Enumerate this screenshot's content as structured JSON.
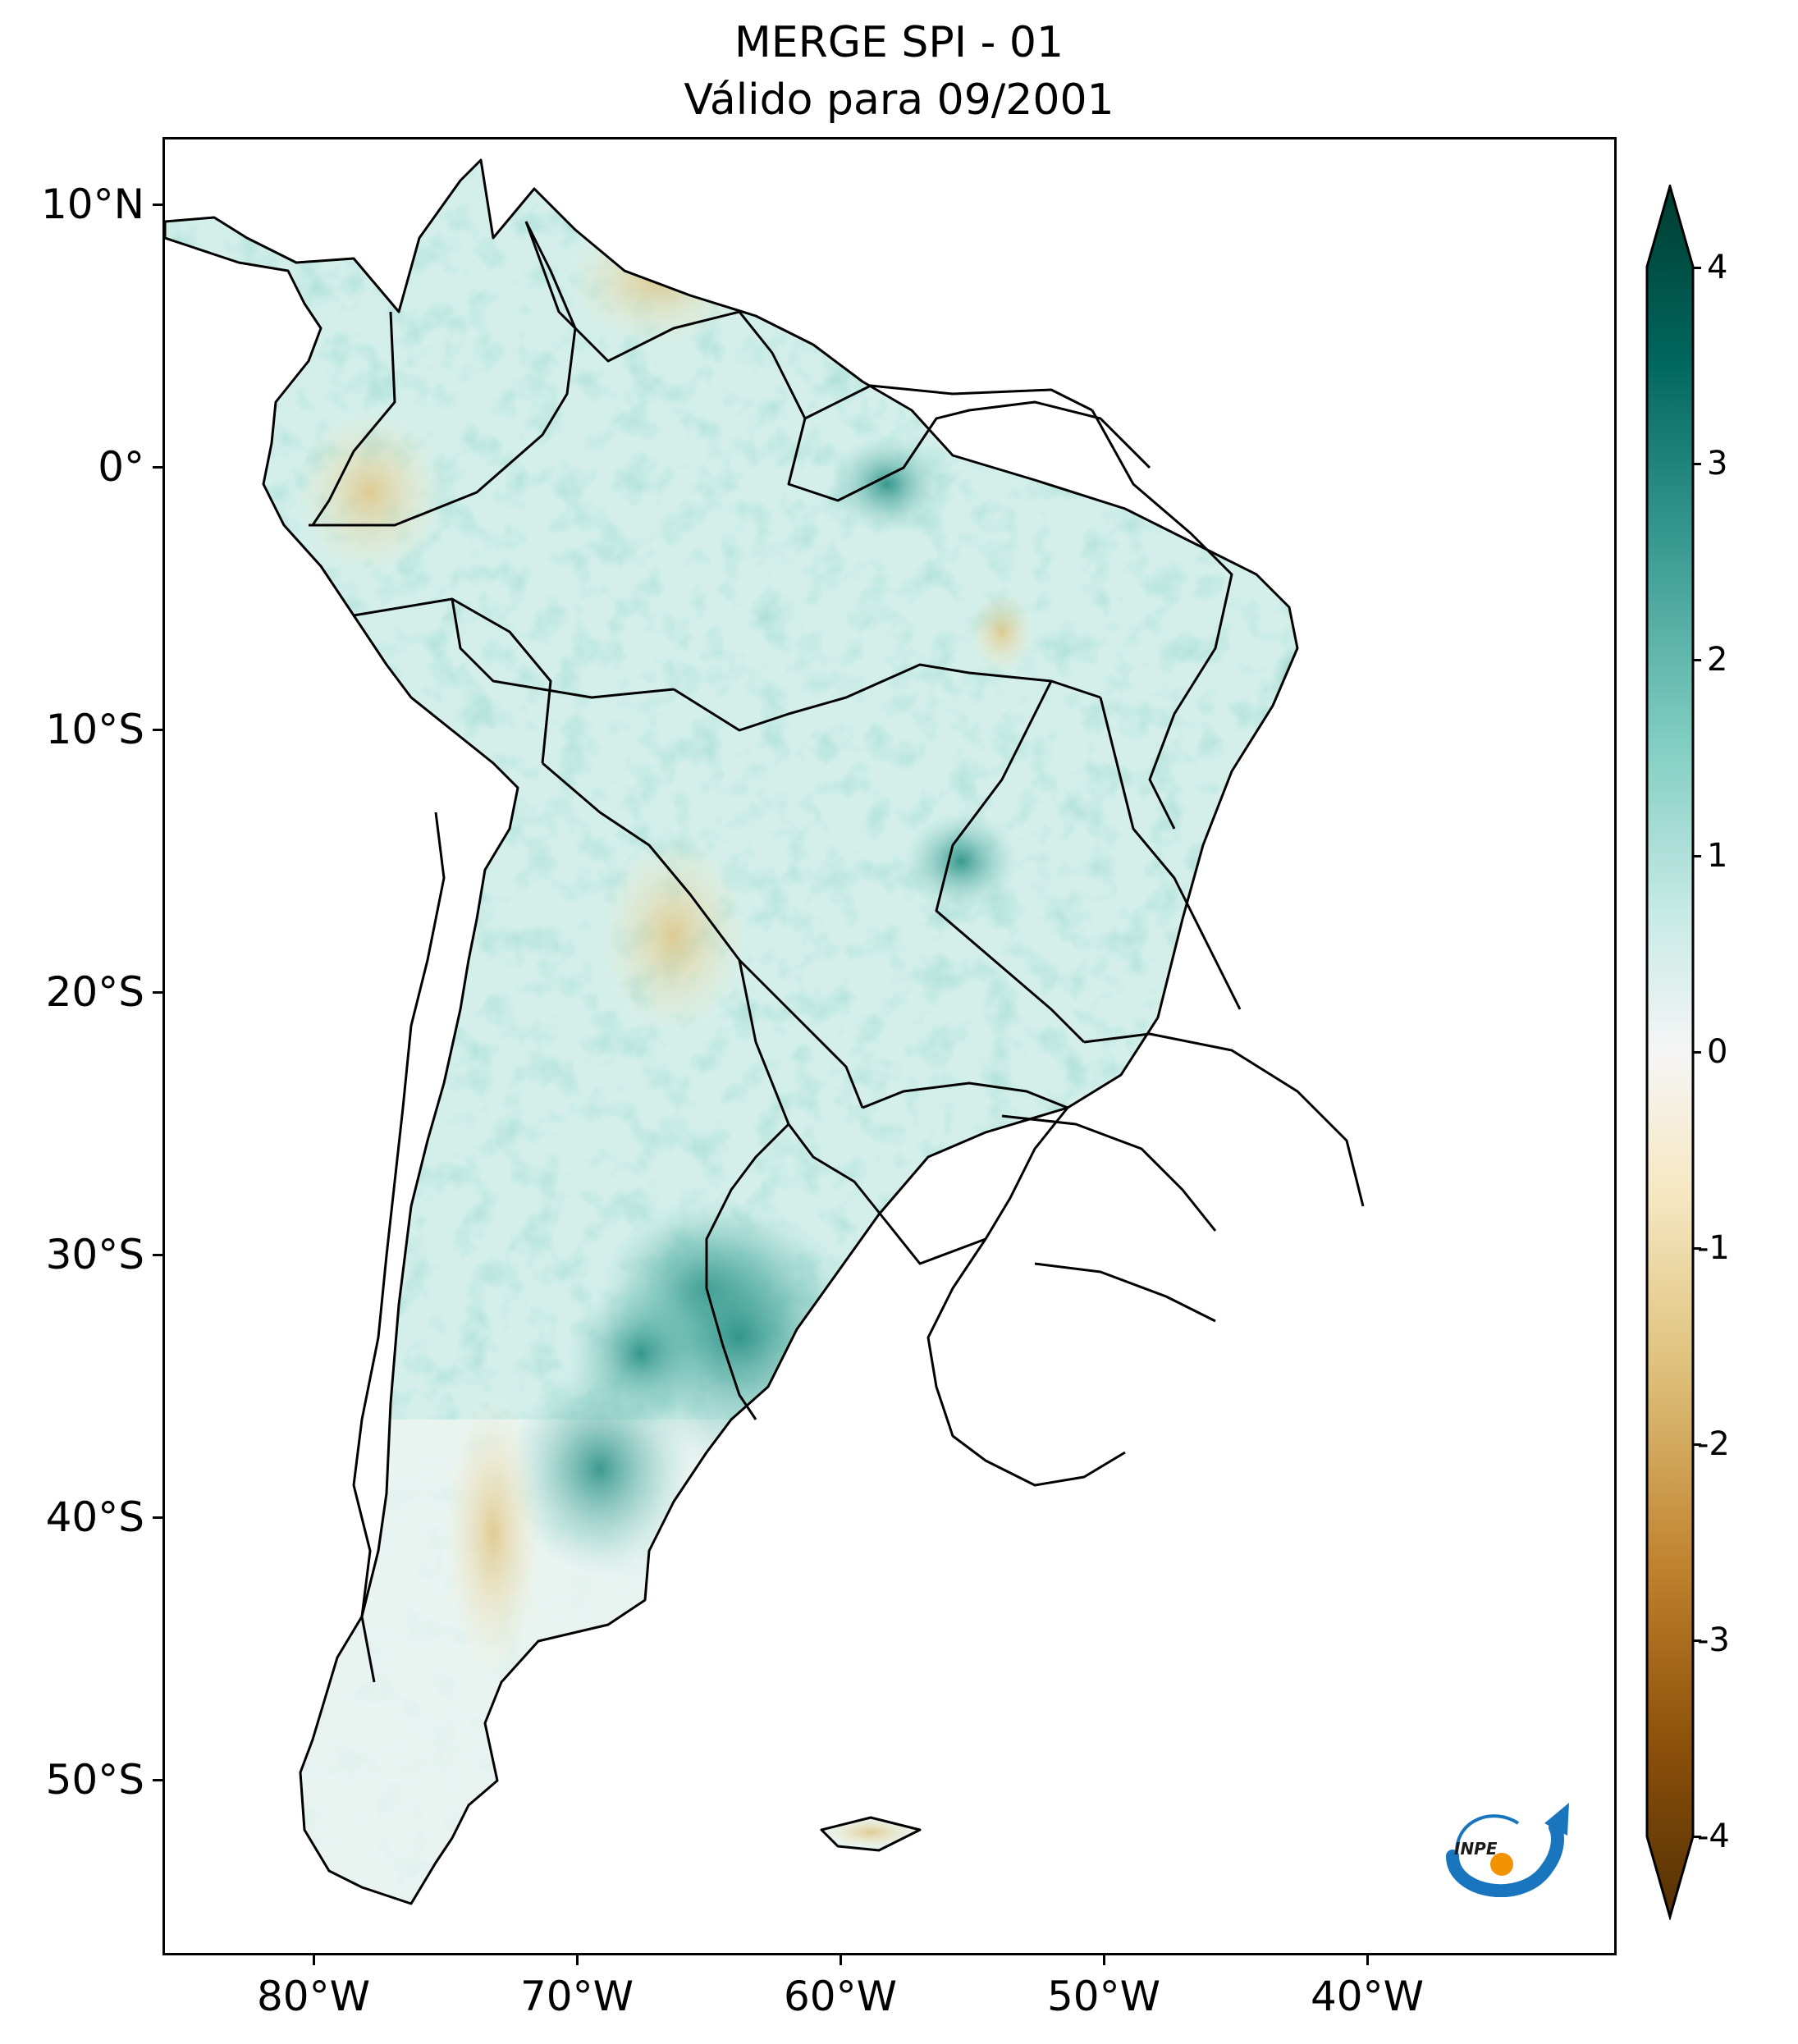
{
  "title": {
    "line1": "MERGE   SPI - 01",
    "line2": "Válido para 09/2001"
  },
  "map": {
    "region": "South America",
    "variable": "SPI - 01",
    "lat_ticks": [
      "10°N",
      "0°",
      "10°S",
      "20°S",
      "30°S",
      "40°S",
      "50°S"
    ],
    "lon_ticks": [
      "80°W",
      "70°W",
      "60°W",
      "50°W",
      "40°W"
    ],
    "lat_values": [
      10,
      0,
      -10,
      -20,
      -30,
      -40,
      -50
    ],
    "lon_values": [
      -80,
      -70,
      -60,
      -50,
      -40
    ],
    "extent": {
      "lon_min": -85,
      "lon_max": -30,
      "lat_min": -56,
      "lat_max": 13
    }
  },
  "colorbar": {
    "colormap": "BrBG",
    "ticks": [
      "4",
      "3",
      "2",
      "1",
      "0",
      "-1",
      "-2",
      "-3",
      "-4"
    ],
    "tick_values": [
      4,
      3,
      2,
      1,
      0,
      -1,
      -2,
      -3,
      -4
    ],
    "min": -4,
    "max": 4,
    "extend": "both",
    "colors": [
      "#543005",
      "#8c510a",
      "#bf812d",
      "#dfc27d",
      "#f6e8c3",
      "#f5f5f5",
      "#c7eae5",
      "#80cdc1",
      "#35978f",
      "#01665e",
      "#003c30"
    ]
  },
  "logo": {
    "text": "INPE",
    "colors": {
      "blue": "#1976be",
      "orange": "#f39200"
    }
  }
}
